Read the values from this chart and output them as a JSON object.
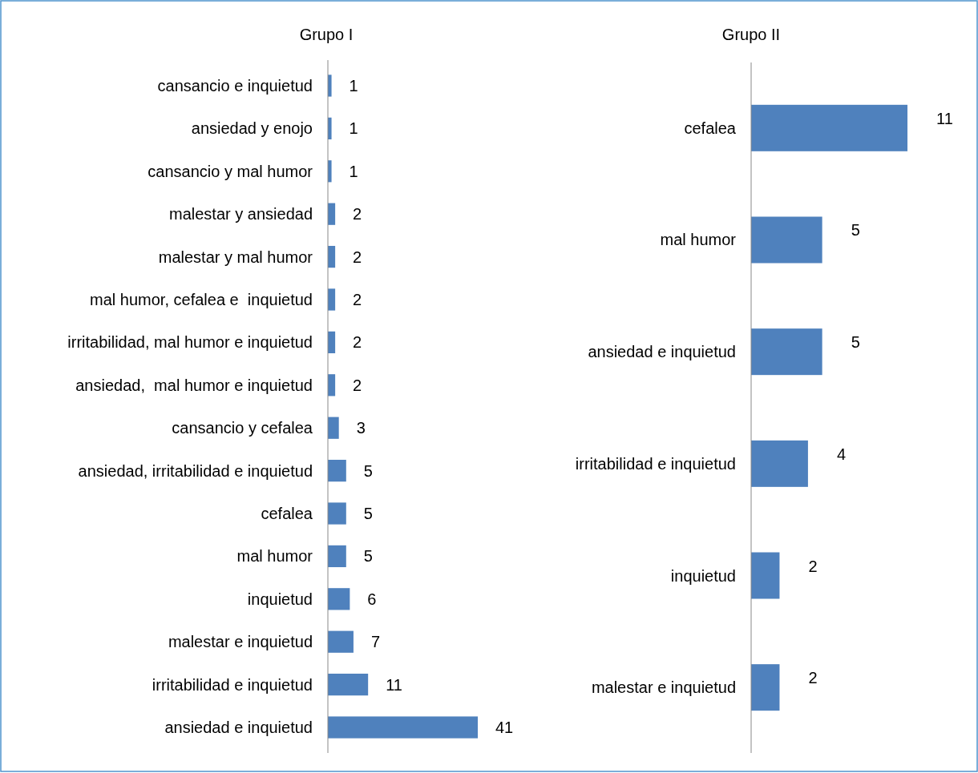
{
  "chart_data": [
    {
      "type": "bar",
      "orientation": "horizontal",
      "title": "Grupo I",
      "color": "#4f81bd",
      "data_labels": true,
      "categories": [
        "cansancio e inquietud",
        "ansiedad y enojo",
        "cansancio y mal humor",
        "malestar y ansiedad",
        "malestar y mal humor",
        "mal humor, cefalea e  inquietud",
        "irritabilidad, mal humor e inquietud",
        "ansiedad,  mal humor e inquietud",
        "cansancio y cefalea",
        "ansiedad, irritabilidad e inquietud",
        "cefalea",
        "mal humor",
        "inquietud",
        "malestar e inquietud",
        "irritabilidad e inquietud",
        "ansiedad e inquietud"
      ],
      "values": [
        1,
        1,
        1,
        2,
        2,
        2,
        2,
        2,
        3,
        5,
        5,
        5,
        6,
        7,
        11,
        41
      ]
    },
    {
      "type": "bar",
      "orientation": "horizontal",
      "title": "Grupo II",
      "color": "#4f81bd",
      "data_labels": true,
      "categories": [
        "cefalea",
        "mal humor",
        "ansiedad e inquietud",
        "irritabilidad e inquietud",
        "inquietud",
        "malestar e inquietud"
      ],
      "values": [
        11,
        5,
        5,
        4,
        2,
        2
      ]
    }
  ]
}
